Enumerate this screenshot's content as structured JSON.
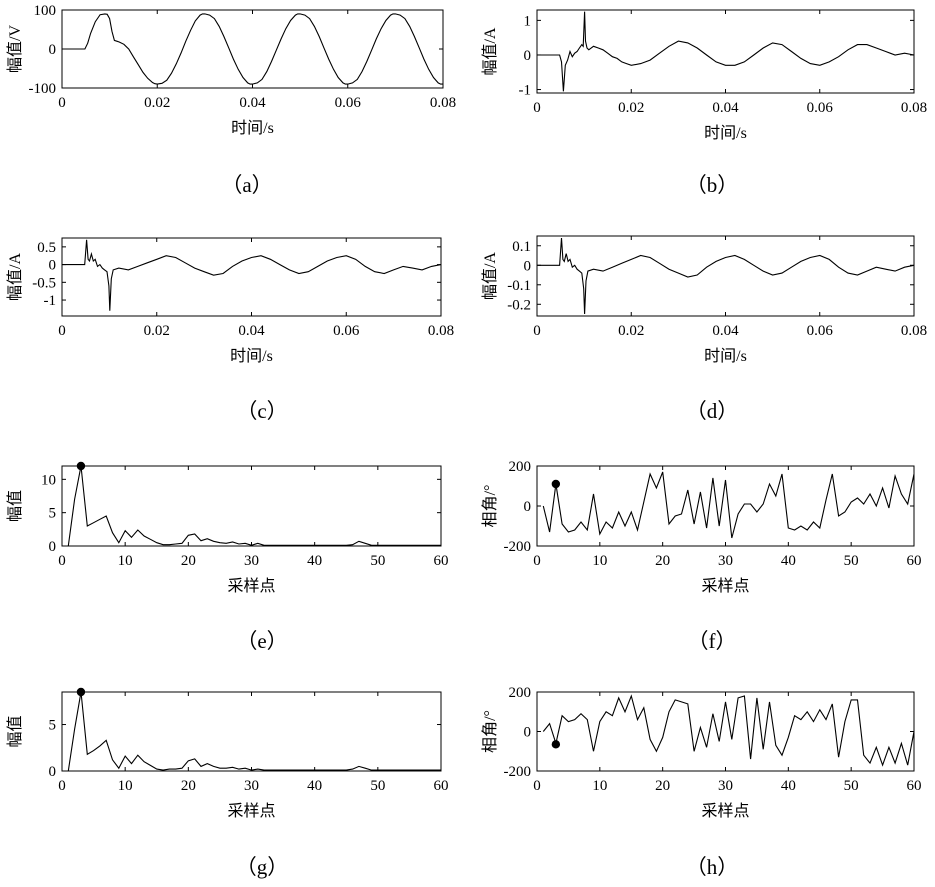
{
  "figure": {
    "panels": [
      {
        "id": "a",
        "caption": "（a）",
        "ylabel": "幅值/V",
        "xlabel": "时间/s",
        "xticks": [
          "0",
          "0.02",
          "0.04",
          "0.06",
          "0.08"
        ],
        "yticks": [
          "100",
          "0",
          "-100"
        ]
      },
      {
        "id": "b",
        "caption": "（b）",
        "ylabel": "幅值/A",
        "xlabel": "时间/s",
        "xticks": [
          "0",
          "0.02",
          "0.04",
          "0.06",
          "0.08"
        ],
        "yticks": [
          "1",
          "0",
          "-1"
        ]
      },
      {
        "id": "c",
        "caption": "（c）",
        "ylabel": "幅值/A",
        "xlabel": "时间/s",
        "xticks": [
          "0",
          "0.02",
          "0.04",
          "0.06",
          "0.08"
        ],
        "yticks": [
          "0.5",
          "0",
          "-0.5",
          "-1"
        ]
      },
      {
        "id": "d",
        "caption": "（d）",
        "ylabel": "幅值/A",
        "xlabel": "时间/s",
        "xticks": [
          "0",
          "0.02",
          "0.04",
          "0.06",
          "0.08"
        ],
        "yticks": [
          "0.1",
          "0",
          "-0.1",
          "-0.2"
        ]
      },
      {
        "id": "e",
        "caption": "（e）",
        "ylabel": "幅值",
        "xlabel": "采样点",
        "xticks": [
          "0",
          "10",
          "20",
          "30",
          "40",
          "50",
          "60"
        ],
        "yticks": [
          "10",
          "5",
          "0"
        ]
      },
      {
        "id": "f",
        "caption": "（f）",
        "ylabel": "相角/°",
        "xlabel": "采样点",
        "xticks": [
          "0",
          "10",
          "20",
          "30",
          "40",
          "50",
          "60"
        ],
        "yticks": [
          "200",
          "0",
          "-200"
        ]
      },
      {
        "id": "g",
        "caption": "（g）",
        "ylabel": "幅值",
        "xlabel": "采样点",
        "xticks": [
          "0",
          "10",
          "20",
          "30",
          "40",
          "50",
          "60"
        ],
        "yticks": [
          "5",
          "0"
        ]
      },
      {
        "id": "h",
        "caption": "（h）",
        "ylabel": "相角/°",
        "xlabel": "采样点",
        "xticks": [
          "0",
          "10",
          "20",
          "30",
          "40",
          "50",
          "60"
        ],
        "yticks": [
          "200",
          "0",
          "-200"
        ]
      }
    ]
  },
  "chart_data": [
    {
      "id": "a",
      "type": "line",
      "xlabel": "时间/s",
      "ylabel": "幅值/V",
      "xlim": [
        0,
        0.08
      ],
      "ylim": [
        -100,
        100
      ],
      "xticks": [
        0,
        0.02,
        0.04,
        0.06,
        0.08
      ],
      "yticks": [
        100,
        0,
        -100
      ],
      "x": [
        0,
        0.0028,
        0.0048,
        0.0054,
        0.006,
        0.007,
        0.008,
        0.009,
        0.0095,
        0.01,
        0.0105,
        0.011,
        0.0115,
        0.012,
        0.013,
        0.014,
        0.015,
        0.016,
        0.017,
        0.018,
        0.019,
        0.0195,
        0.02,
        0.021,
        0.022,
        0.023,
        0.024,
        0.025,
        0.026,
        0.027,
        0.028,
        0.029,
        0.0295,
        0.03,
        0.031,
        0.032,
        0.033,
        0.034,
        0.035,
        0.036,
        0.037,
        0.038,
        0.039,
        0.0395,
        0.04,
        0.041,
        0.042,
        0.043,
        0.044,
        0.045,
        0.046,
        0.047,
        0.048,
        0.049,
        0.0495,
        0.05,
        0.051,
        0.052,
        0.053,
        0.054,
        0.055,
        0.056,
        0.057,
        0.058,
        0.059,
        0.0595,
        0.06,
        0.061,
        0.062,
        0.063,
        0.064,
        0.065,
        0.066,
        0.067,
        0.068,
        0.069,
        0.0695,
        0.07,
        0.071,
        0.072,
        0.073,
        0.074,
        0.075,
        0.076,
        0.077,
        0.078,
        0.079,
        0.0795,
        0.08
      ],
      "y": [
        0,
        0,
        0,
        15,
        40,
        70,
        88,
        90,
        89,
        78,
        45,
        22,
        20,
        18,
        12,
        0,
        -20,
        -40,
        -60,
        -75,
        -86,
        -89,
        -90,
        -88,
        -80,
        -62,
        -38,
        -10,
        20,
        48,
        72,
        87,
        90,
        90,
        87,
        78,
        58,
        32,
        3,
        -26,
        -52,
        -73,
        -87,
        -90,
        -90,
        -87,
        -78,
        -58,
        -32,
        -3,
        26,
        52,
        73,
        87,
        90,
        90,
        87,
        78,
        58,
        32,
        3,
        -26,
        -52,
        -73,
        -87,
        -90,
        -90,
        -87,
        -78,
        -58,
        -32,
        -3,
        26,
        52,
        73,
        87,
        90,
        90,
        87,
        78,
        58,
        32,
        3,
        -26,
        -52,
        -73,
        -87,
        -90,
        -90
      ]
    },
    {
      "id": "b",
      "type": "line",
      "xlabel": "时间/s",
      "ylabel": "幅值/A",
      "xlim": [
        0,
        0.08
      ],
      "ylim": [
        -1.1,
        1.3
      ],
      "xticks": [
        0,
        0.02,
        0.04,
        0.06,
        0.08
      ],
      "yticks": [
        1,
        0,
        -1
      ],
      "x": [
        0,
        0.0048,
        0.0052,
        0.0056,
        0.006,
        0.0065,
        0.007,
        0.0075,
        0.008,
        0.0085,
        0.009,
        0.0095,
        0.0098,
        0.0101,
        0.0103,
        0.0106,
        0.011,
        0.012,
        0.013,
        0.014,
        0.015,
        0.016,
        0.017,
        0.018,
        0.019,
        0.02,
        0.022,
        0.024,
        0.026,
        0.028,
        0.03,
        0.032,
        0.034,
        0.036,
        0.038,
        0.04,
        0.042,
        0.044,
        0.046,
        0.048,
        0.05,
        0.052,
        0.054,
        0.056,
        0.058,
        0.06,
        0.062,
        0.064,
        0.066,
        0.068,
        0.07,
        0.072,
        0.074,
        0.076,
        0.078,
        0.08
      ],
      "y": [
        0,
        0,
        -0.2,
        -1.05,
        -0.3,
        -0.15,
        0.1,
        -0.05,
        0.05,
        0.1,
        0.2,
        0.3,
        0.25,
        1.25,
        0.4,
        0.2,
        0.15,
        0.25,
        0.2,
        0.15,
        0.05,
        -0.05,
        -0.1,
        -0.2,
        -0.25,
        -0.3,
        -0.25,
        -0.15,
        0.05,
        0.25,
        0.4,
        0.35,
        0.2,
        0.0,
        -0.2,
        -0.3,
        -0.3,
        -0.2,
        0.0,
        0.2,
        0.35,
        0.3,
        0.1,
        -0.1,
        -0.25,
        -0.3,
        -0.2,
        -0.05,
        0.15,
        0.3,
        0.3,
        0.2,
        0.1,
        0.0,
        0.05,
        0.0
      ]
    },
    {
      "id": "c",
      "type": "line",
      "xlabel": "时间/s",
      "ylabel": "幅值/A",
      "xlim": [
        0,
        0.08
      ],
      "ylim": [
        -1.45,
        0.75
      ],
      "xticks": [
        0,
        0.02,
        0.04,
        0.06,
        0.08
      ],
      "yticks": [
        0.5,
        0,
        -0.5,
        -1
      ],
      "x": [
        0,
        0.0048,
        0.0052,
        0.0055,
        0.0058,
        0.0062,
        0.0066,
        0.007,
        0.0075,
        0.008,
        0.0085,
        0.009,
        0.0095,
        0.0099,
        0.0101,
        0.0104,
        0.0108,
        0.012,
        0.014,
        0.016,
        0.018,
        0.02,
        0.022,
        0.024,
        0.026,
        0.028,
        0.03,
        0.032,
        0.034,
        0.036,
        0.038,
        0.04,
        0.042,
        0.044,
        0.046,
        0.048,
        0.05,
        0.052,
        0.054,
        0.056,
        0.058,
        0.06,
        0.062,
        0.064,
        0.066,
        0.068,
        0.07,
        0.072,
        0.074,
        0.076,
        0.078,
        0.08
      ],
      "y": [
        0,
        0,
        0.7,
        0.15,
        0.1,
        0.3,
        0.1,
        0.15,
        -0.05,
        0.0,
        -0.1,
        -0.15,
        -0.2,
        -0.6,
        -1.3,
        -0.4,
        -0.15,
        -0.1,
        -0.15,
        -0.05,
        0.05,
        0.15,
        0.25,
        0.2,
        0.05,
        -0.1,
        -0.2,
        -0.3,
        -0.25,
        -0.05,
        0.1,
        0.2,
        0.25,
        0.15,
        0.0,
        -0.15,
        -0.25,
        -0.2,
        -0.05,
        0.1,
        0.2,
        0.25,
        0.15,
        -0.05,
        -0.2,
        -0.25,
        -0.15,
        -0.05,
        -0.1,
        -0.15,
        -0.05,
        0.0
      ]
    },
    {
      "id": "d",
      "type": "line",
      "xlabel": "时间/s",
      "ylabel": "幅值/A",
      "xlim": [
        0,
        0.08
      ],
      "ylim": [
        -0.26,
        0.15
      ],
      "xticks": [
        0,
        0.02,
        0.04,
        0.06,
        0.08
      ],
      "yticks": [
        0.1,
        0,
        -0.1,
        -0.2
      ],
      "x": [
        0,
        0.0048,
        0.0052,
        0.0055,
        0.0058,
        0.0062,
        0.0066,
        0.007,
        0.0075,
        0.008,
        0.0085,
        0.009,
        0.0095,
        0.0099,
        0.0101,
        0.0104,
        0.0108,
        0.012,
        0.014,
        0.016,
        0.018,
        0.02,
        0.022,
        0.024,
        0.026,
        0.028,
        0.03,
        0.032,
        0.034,
        0.036,
        0.038,
        0.04,
        0.042,
        0.044,
        0.046,
        0.048,
        0.05,
        0.052,
        0.054,
        0.056,
        0.058,
        0.06,
        0.062,
        0.064,
        0.066,
        0.068,
        0.07,
        0.072,
        0.074,
        0.076,
        0.078,
        0.08
      ],
      "y": [
        0,
        0,
        0.14,
        0.03,
        0.02,
        0.06,
        0.02,
        0.03,
        -0.01,
        0.0,
        -0.02,
        -0.03,
        -0.04,
        -0.12,
        -0.25,
        -0.08,
        -0.03,
        -0.02,
        -0.03,
        -0.01,
        0.01,
        0.03,
        0.05,
        0.04,
        0.01,
        -0.02,
        -0.04,
        -0.06,
        -0.05,
        -0.01,
        0.02,
        0.04,
        0.05,
        0.03,
        0.0,
        -0.03,
        -0.05,
        -0.04,
        -0.01,
        0.02,
        0.04,
        0.05,
        0.03,
        -0.01,
        -0.04,
        -0.05,
        -0.03,
        -0.01,
        -0.02,
        -0.03,
        -0.01,
        0.0
      ]
    },
    {
      "id": "e",
      "type": "line",
      "xlabel": "采样点",
      "ylabel": "幅值",
      "xlim": [
        0,
        60
      ],
      "ylim": [
        0,
        12
      ],
      "xticks": [
        0,
        10,
        20,
        30,
        40,
        50,
        60
      ],
      "yticks": [
        10,
        5,
        0
      ],
      "x": [
        1,
        2,
        3,
        4,
        5,
        6,
        7,
        8,
        9,
        10,
        11,
        12,
        13,
        14,
        15,
        16,
        17,
        18,
        19,
        20,
        21,
        22,
        23,
        24,
        25,
        26,
        27,
        28,
        29,
        30,
        31,
        32,
        33,
        34,
        35,
        36,
        37,
        38,
        39,
        40,
        41,
        42,
        43,
        44,
        45,
        46,
        47,
        48,
        49,
        50,
        51,
        52,
        53,
        54,
        55,
        56,
        57,
        58,
        59,
        60
      ],
      "y": [
        0,
        7,
        12,
        3,
        3.5,
        4,
        4.5,
        2,
        0.5,
        2.3,
        1.3,
        2.4,
        1.5,
        1,
        0.5,
        0.2,
        0.2,
        0.3,
        0.4,
        1.6,
        1.8,
        0.8,
        1.1,
        0.7,
        0.5,
        0.4,
        0.6,
        0.3,
        0.4,
        0.1,
        0.4,
        0.1,
        0.1,
        0.1,
        0.1,
        0.1,
        0.1,
        0.1,
        0.1,
        0.1,
        0.1,
        0.1,
        0.1,
        0.1,
        0.1,
        0.2,
        0.7,
        0.4,
        0.1,
        0.1,
        0.1,
        0.1,
        0.1,
        0.1,
        0.1,
        0.1,
        0.1,
        0.1,
        0.1,
        0.1
      ],
      "highlight": {
        "x": 3,
        "y": 12
      }
    },
    {
      "id": "f",
      "type": "line",
      "xlabel": "采样点",
      "ylabel": "相角/°",
      "xlim": [
        0,
        60
      ],
      "ylim": [
        -200,
        200
      ],
      "xticks": [
        0,
        10,
        20,
        30,
        40,
        50,
        60
      ],
      "yticks": [
        200,
        0,
        -200
      ],
      "x": [
        1,
        2,
        3,
        4,
        5,
        6,
        7,
        8,
        9,
        10,
        11,
        12,
        13,
        14,
        15,
        16,
        17,
        18,
        19,
        20,
        21,
        22,
        23,
        24,
        25,
        26,
        27,
        28,
        29,
        30,
        31,
        32,
        33,
        34,
        35,
        36,
        37,
        38,
        39,
        40,
        41,
        42,
        43,
        44,
        45,
        46,
        47,
        48,
        49,
        50,
        51,
        52,
        53,
        54,
        55,
        56,
        57,
        58,
        59,
        60
      ],
      "y": [
        0,
        -130,
        110,
        -90,
        -130,
        -120,
        -80,
        -120,
        60,
        -140,
        -80,
        -110,
        -30,
        -100,
        -30,
        -120,
        20,
        160,
        90,
        170,
        -90,
        -50,
        -40,
        80,
        -90,
        70,
        -110,
        140,
        -100,
        130,
        -160,
        -40,
        10,
        10,
        -30,
        10,
        110,
        50,
        160,
        -110,
        -120,
        -100,
        -120,
        -80,
        -110,
        30,
        160,
        -50,
        -30,
        20,
        40,
        10,
        60,
        0,
        90,
        -10,
        150,
        60,
        10,
        160
      ],
      "highlight": {
        "x": 3,
        "y": 110
      }
    },
    {
      "id": "g",
      "type": "line",
      "xlabel": "采样点",
      "ylabel": "幅值",
      "xlim": [
        0,
        60
      ],
      "ylim": [
        0,
        8.5
      ],
      "xticks": [
        0,
        10,
        20,
        30,
        40,
        50,
        60
      ],
      "yticks": [
        5,
        0
      ],
      "x": [
        1,
        2,
        3,
        4,
        5,
        6,
        7,
        8,
        9,
        10,
        11,
        12,
        13,
        14,
        15,
        16,
        17,
        18,
        19,
        20,
        21,
        22,
        23,
        24,
        25,
        26,
        27,
        28,
        29,
        30,
        31,
        32,
        33,
        34,
        35,
        36,
        37,
        38,
        39,
        40,
        41,
        42,
        43,
        44,
        45,
        46,
        47,
        48,
        49,
        50,
        51,
        52,
        53,
        54,
        55,
        56,
        57,
        58,
        59,
        60
      ],
      "y": [
        0,
        4.5,
        8.5,
        1.8,
        2.2,
        2.7,
        3.3,
        1.2,
        0.3,
        1.6,
        0.8,
        1.7,
        1.0,
        0.6,
        0.2,
        0.1,
        0.2,
        0.2,
        0.3,
        1.1,
        1.3,
        0.5,
        0.8,
        0.5,
        0.3,
        0.3,
        0.4,
        0.2,
        0.3,
        0.1,
        0.2,
        0.1,
        0.1,
        0.1,
        0.1,
        0.1,
        0.1,
        0.1,
        0.1,
        0.1,
        0.1,
        0.1,
        0.1,
        0.1,
        0.1,
        0.2,
        0.5,
        0.3,
        0.1,
        0.1,
        0.1,
        0.1,
        0.1,
        0.1,
        0.1,
        0.1,
        0.1,
        0.1,
        0.1,
        0.1
      ],
      "highlight": {
        "x": 3,
        "y": 8.5
      }
    },
    {
      "id": "h",
      "type": "line",
      "xlabel": "采样点",
      "ylabel": "相角/°",
      "xlim": [
        0,
        60
      ],
      "ylim": [
        -200,
        200
      ],
      "xticks": [
        0,
        10,
        20,
        30,
        40,
        50,
        60
      ],
      "yticks": [
        200,
        0,
        -200
      ],
      "x": [
        1,
        2,
        3,
        4,
        5,
        6,
        7,
        8,
        9,
        10,
        11,
        12,
        13,
        14,
        15,
        16,
        17,
        18,
        19,
        20,
        21,
        22,
        23,
        24,
        25,
        26,
        27,
        28,
        29,
        30,
        31,
        32,
        33,
        34,
        35,
        36,
        37,
        38,
        39,
        40,
        41,
        42,
        43,
        44,
        45,
        46,
        47,
        48,
        49,
        50,
        51,
        52,
        53,
        54,
        55,
        56,
        57,
        58,
        59,
        60
      ],
      "y": [
        0,
        40,
        -60,
        80,
        50,
        60,
        90,
        60,
        -100,
        50,
        100,
        80,
        170,
        100,
        180,
        60,
        120,
        -40,
        -100,
        -30,
        100,
        160,
        150,
        140,
        -100,
        20,
        -80,
        90,
        -50,
        150,
        -40,
        170,
        180,
        -140,
        170,
        -90,
        150,
        -70,
        -120,
        -30,
        80,
        60,
        100,
        50,
        110,
        60,
        140,
        -130,
        50,
        160,
        160,
        -120,
        -160,
        -80,
        -170,
        -80,
        -160,
        -60,
        -170,
        0
      ],
      "highlight": {
        "x": 3,
        "y": -65
      }
    }
  ]
}
